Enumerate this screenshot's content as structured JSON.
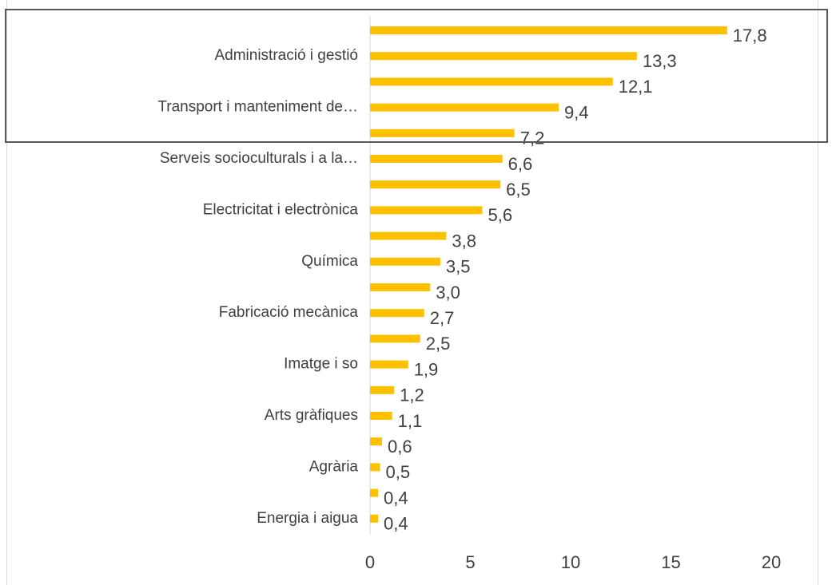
{
  "chart_data": {
    "type": "hbar",
    "categories": [
      null,
      "Administració i gestió",
      null,
      "Transport i manteniment de…",
      null,
      "Serveis socioculturals i a la…",
      null,
      "Electricitat i electrònica",
      null,
      "Química",
      null,
      "Fabricació mecànica",
      null,
      "Imatge i so",
      null,
      "Arts gràfiques",
      null,
      "Agrària",
      null,
      "Energia i aigua"
    ],
    "values": [
      17.8,
      13.3,
      12.1,
      9.4,
      7.2,
      6.6,
      6.5,
      5.6,
      3.8,
      3.5,
      3.0,
      2.7,
      2.5,
      1.9,
      1.2,
      1.1,
      0.6,
      0.5,
      0.4,
      0.4
    ],
    "value_labels": [
      "17,8",
      "13,3",
      "12,1",
      "9,4",
      "7,2",
      "6,6",
      "6,5",
      "5,6",
      "3,8",
      "3,5",
      "3,0",
      "2,7",
      "2,5",
      "1,9",
      "1,2",
      "1,1",
      "0,6",
      "0,5",
      "0,4",
      "0,4"
    ],
    "color": "#ffc000",
    "xlim": [
      0,
      20
    ],
    "xticks": [
      0,
      5,
      10,
      15,
      20
    ],
    "grid": false
  }
}
